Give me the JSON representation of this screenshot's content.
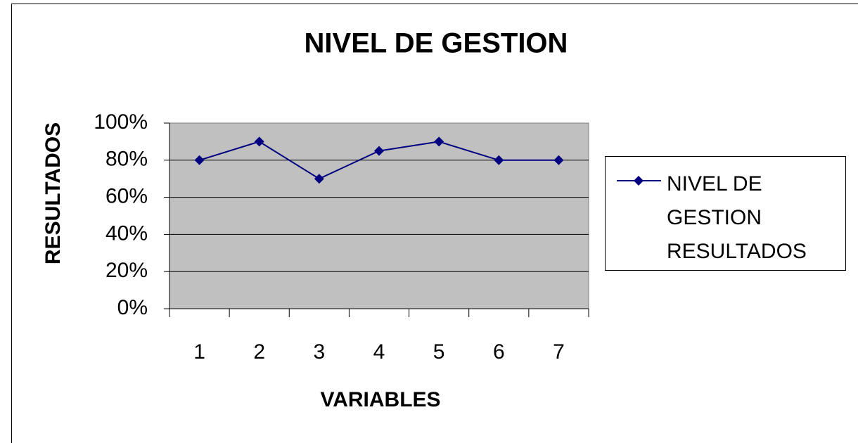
{
  "chart_data": {
    "type": "line",
    "title": "NIVEL DE GESTION",
    "x_label": "VARIABLES",
    "y_label": "RESULTADOS",
    "categories": [
      "1",
      "2",
      "3",
      "4",
      "5",
      "6",
      "7"
    ],
    "series": [
      {
        "name": "NIVEL DE GESTION RESULTADOS",
        "color": "#000080",
        "values": [
          80,
          90,
          70,
          85,
          90,
          80,
          80
        ]
      }
    ],
    "ylim": [
      0,
      100
    ],
    "yticks": [
      {
        "value": 0,
        "label": "0%"
      },
      {
        "value": 20,
        "label": "20%"
      },
      {
        "value": 40,
        "label": "40%"
      },
      {
        "value": 60,
        "label": "60%"
      },
      {
        "value": 80,
        "label": "80%"
      },
      {
        "value": 100,
        "label": "100%"
      }
    ],
    "grid": true,
    "legend": "right"
  }
}
